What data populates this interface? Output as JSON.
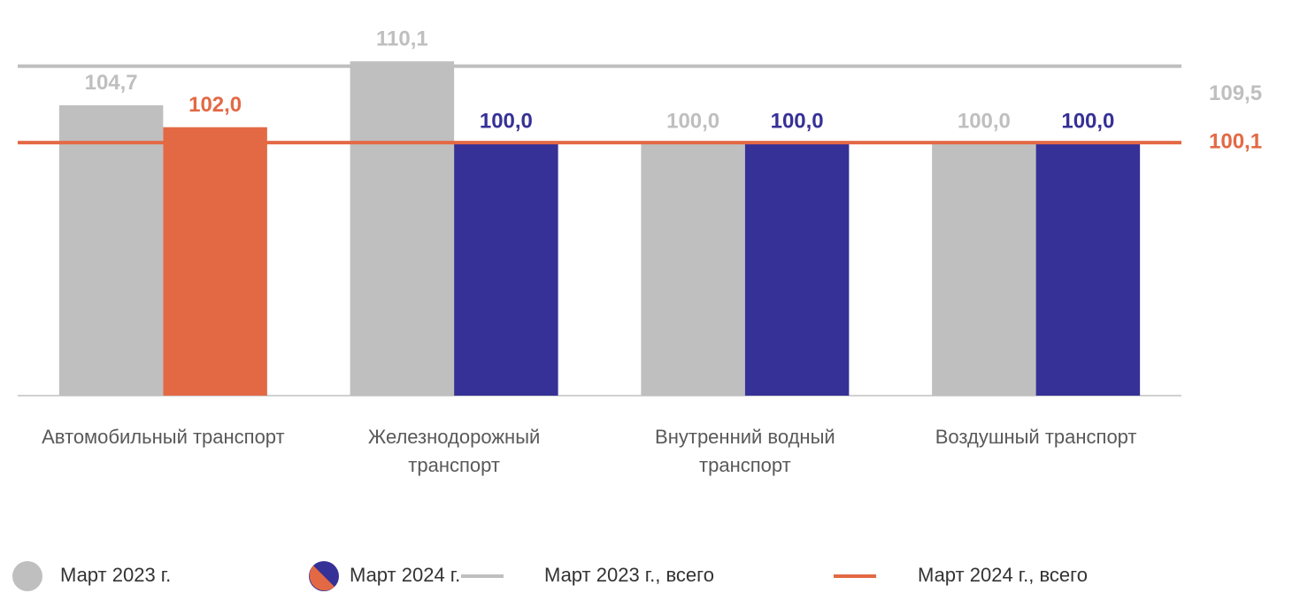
{
  "chart_data": {
    "type": "bar",
    "categories": [
      "Автомобильный транспорт",
      "Железнодорожный транспорт",
      "Внутренний водный транспорт",
      "Воздушный транспорт"
    ],
    "series": [
      {
        "name": "Март 2023 г.",
        "color": "#bfbfbf",
        "values": [
          104.7,
          110.1,
          100,
          100
        ],
        "value_labels": [
          "104,7",
          "110,1",
          "100,0",
          "100,0"
        ]
      },
      {
        "name": "Март 2024 г.",
        "colors": [
          "#e36945",
          "#363196",
          "#363196",
          "#363196"
        ],
        "values": [
          102,
          100,
          100,
          100
        ],
        "value_labels": [
          "102,0",
          "100,0",
          "100,0",
          "100,0"
        ]
      }
    ],
    "lines": [
      {
        "name": "Март 2023 г., всего",
        "color": "#bfbfbf",
        "value": 109.5,
        "value_label": "109,5"
      },
      {
        "name": "Март 2024 г., всего",
        "color": "#e36945",
        "value": 100.1,
        "value_label": "100,1"
      }
    ],
    "ylim": [
      69,
      111
    ]
  }
}
